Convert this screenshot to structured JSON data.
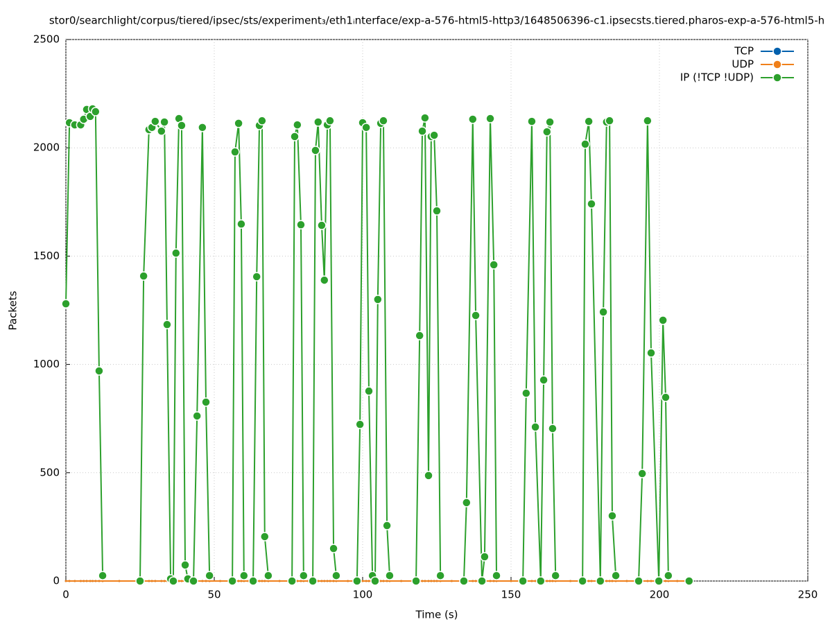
{
  "chart_data": {
    "type": "line",
    "title": "stor0/searchlight/corpus/tiered/ipsec/sts/experiment₃/eth1ᵢnterface/exp-a-576-html5-http3/1648506396-c1.ipsecsts.tiered.pharos-exp-a-576-html5-h",
    "x_label": "Time (s)",
    "y_label": "Packets",
    "xlim": [
      0,
      250
    ],
    "xticks": [
      0,
      50,
      100,
      150,
      200,
      250
    ],
    "ylim": [
      0,
      2500
    ],
    "yticks": [
      0,
      500,
      1000,
      1500,
      2000,
      2500
    ],
    "grid": true,
    "legend": "top-right",
    "x": [
      0,
      1.2,
      3,
      5,
      6,
      7,
      8.2,
      9,
      10,
      11.2,
      12.4,
      18,
      25,
      26.2,
      28,
      29,
      30.1,
      32.2,
      33.2,
      34.1,
      35.3,
      36.2,
      37.1,
      38.1,
      39,
      40.2,
      41.1,
      42,
      43,
      44.2,
      46,
      47.2,
      48.4,
      52,
      56.1,
      57,
      58.2,
      59.1,
      60,
      61.5,
      63.1,
      64.3,
      65.2,
      66.1,
      67,
      68.2,
      72,
      76.2,
      77.1,
      78,
      79.2,
      80.1,
      81.6,
      83.2,
      84.1,
      85,
      86.2,
      87.1,
      88.1,
      89,
      90.2,
      91.1,
      95,
      98.1,
      99.1,
      100,
      101.2,
      102.1,
      103.3,
      104.2,
      105.1,
      106.1,
      107,
      108.2,
      109.1,
      113,
      118,
      119.2,
      120.1,
      121,
      122.2,
      123.1,
      124.1,
      125,
      126.2,
      130,
      134.1,
      135,
      137.1,
      138.1,
      140.2,
      141.1,
      143,
      144.2,
      145.1,
      150,
      154,
      155.1,
      157,
      158.2,
      160,
      161,
      162.1,
      163.1,
      164,
      165,
      170,
      174.1,
      175,
      176.2,
      177.1,
      180.1,
      181.1,
      182.2,
      183.2,
      184.1,
      185.3,
      189,
      193,
      194.2,
      196,
      197.2,
      199.8,
      201.2,
      202.1,
      203,
      206,
      210
    ],
    "series": [
      {
        "name": "TCP",
        "color": "#0060ad",
        "values": [
          0,
          0,
          0,
          0,
          0,
          0,
          0,
          0,
          0,
          0,
          0,
          0,
          0,
          0,
          0,
          0,
          0,
          0,
          0,
          0,
          0,
          0,
          0,
          0,
          0,
          0,
          0,
          0,
          0,
          0,
          0,
          0,
          0,
          0,
          0,
          0,
          0,
          0,
          0,
          0,
          0,
          0,
          0,
          0,
          0,
          0,
          0,
          0,
          0,
          0,
          0,
          0,
          0,
          0,
          0,
          0,
          0,
          0,
          0,
          0,
          0,
          0,
          0,
          0,
          0,
          0,
          0,
          0,
          0,
          0,
          0,
          0,
          0,
          0,
          0,
          0,
          0,
          0,
          0,
          0,
          0,
          0,
          0,
          0,
          0,
          0,
          0,
          0,
          0,
          0,
          0,
          0,
          0,
          0,
          0,
          0,
          0,
          0,
          0,
          0,
          0,
          0,
          0,
          0,
          0,
          0,
          0,
          0,
          0,
          0,
          0,
          0,
          0,
          0,
          0,
          0,
          0,
          0,
          0,
          0,
          0,
          0,
          0,
          0,
          0,
          0,
          0,
          0
        ]
      },
      {
        "name": "UDP",
        "color": "#f0801a",
        "values": [
          0,
          0,
          0,
          0,
          0,
          0,
          0,
          0,
          0,
          0,
          0,
          0,
          0,
          0,
          0,
          0,
          0,
          0,
          0,
          0,
          0,
          0,
          0,
          0,
          0,
          0,
          0,
          0,
          0,
          0,
          0,
          0,
          0,
          0,
          0,
          0,
          0,
          0,
          0,
          0,
          0,
          0,
          0,
          0,
          0,
          0,
          0,
          0,
          0,
          0,
          0,
          0,
          0,
          0,
          0,
          0,
          0,
          0,
          0,
          0,
          0,
          0,
          0,
          0,
          0,
          0,
          0,
          0,
          0,
          0,
          0,
          0,
          0,
          0,
          0,
          0,
          0,
          0,
          0,
          0,
          0,
          0,
          0,
          0,
          0,
          0,
          0,
          0,
          0,
          0,
          0,
          0,
          0,
          0,
          0,
          0,
          0,
          0,
          0,
          0,
          0,
          0,
          0,
          0,
          0,
          0,
          0,
          0,
          0,
          0,
          0,
          0,
          0,
          0,
          0,
          0,
          0,
          0,
          0,
          0,
          0,
          0,
          0,
          0,
          0,
          0,
          0,
          0
        ]
      },
      {
        "name": "IP (!TCP  !UDP)",
        "color": "#2ca02c",
        "values": [
          1280,
          2116,
          2106,
          2106,
          2132,
          2177,
          2145,
          2180,
          2167,
          970,
          25,
          null,
          0,
          1408,
          2084,
          2094,
          2122,
          2077,
          2119,
          1184,
          10,
          0,
          1514,
          2135,
          2103,
          74,
          10,
          null,
          0,
          762,
          2094,
          826,
          25,
          null,
          0,
          1981,
          2113,
          1648,
          25,
          null,
          0,
          1405,
          2103,
          2125,
          205,
          25,
          null,
          0,
          2052,
          2106,
          1645,
          25,
          null,
          0,
          1988,
          2119,
          1642,
          1389,
          2106,
          2125,
          150,
          25,
          null,
          0,
          723,
          2116,
          2094,
          877,
          25,
          0,
          1300,
          2113,
          2125,
          256,
          25,
          null,
          0,
          1133,
          2077,
          2138,
          487,
          2052,
          2058,
          1709,
          25,
          null,
          0,
          362,
          2132,
          1226,
          0,
          112,
          2135,
          1460,
          25,
          null,
          0,
          867,
          2122,
          711,
          0,
          928,
          2074,
          2119,
          704,
          25,
          null,
          0,
          2017,
          2122,
          1741,
          0,
          1242,
          2119,
          2125,
          301,
          25,
          null,
          0,
          496,
          2125,
          1053,
          0,
          1204,
          848,
          25,
          null,
          0
        ]
      }
    ]
  }
}
